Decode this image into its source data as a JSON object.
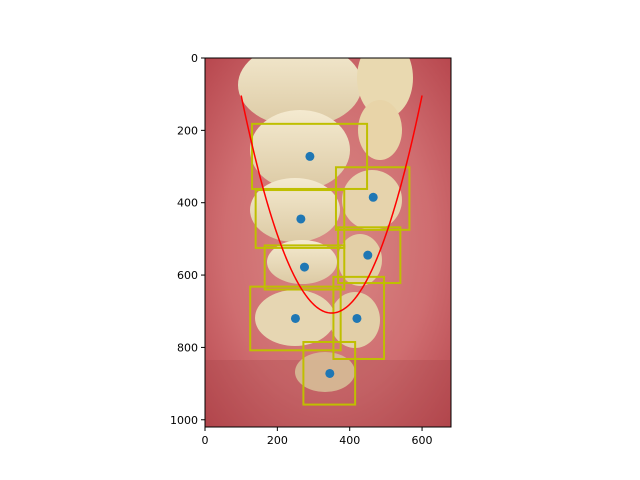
{
  "chart_data": {
    "type": "scatter",
    "background": "photo of upper and lower teeth (intraoral view)",
    "xlim": [
      0,
      680
    ],
    "ylim": [
      1020,
      0
    ],
    "x_ticks": [
      0,
      200,
      400,
      600
    ],
    "y_ticks": [
      0,
      200,
      400,
      600,
      800,
      1000
    ],
    "grid": false,
    "points": [
      {
        "x": 290,
        "y": 272
      },
      {
        "x": 465,
        "y": 385
      },
      {
        "x": 265,
        "y": 445
      },
      {
        "x": 450,
        "y": 545
      },
      {
        "x": 275,
        "y": 578
      },
      {
        "x": 250,
        "y": 720
      },
      {
        "x": 420,
        "y": 720
      },
      {
        "x": 345,
        "y": 872
      }
    ],
    "boxes": [
      {
        "x0": 130,
        "y0": 182,
        "x1": 448,
        "y1": 362
      },
      {
        "x0": 362,
        "y0": 302,
        "x1": 565,
        "y1": 475
      },
      {
        "x0": 140,
        "y0": 365,
        "x1": 385,
        "y1": 525
      },
      {
        "x0": 368,
        "y0": 468,
        "x1": 540,
        "y1": 622
      },
      {
        "x0": 165,
        "y0": 518,
        "x1": 385,
        "y1": 640
      },
      {
        "x0": 125,
        "y0": 632,
        "x1": 375,
        "y1": 808
      },
      {
        "x0": 355,
        "y0": 605,
        "x1": 495,
        "y1": 832
      },
      {
        "x0": 272,
        "y0": 785,
        "x1": 415,
        "y1": 958
      }
    ],
    "curve": {
      "vertex_x": 350,
      "vertex_y": 705,
      "a": 0.00962
    },
    "colors": {
      "points": "#1f77b4",
      "boxes": "#bfbf00",
      "curve": "#ff0000"
    }
  }
}
